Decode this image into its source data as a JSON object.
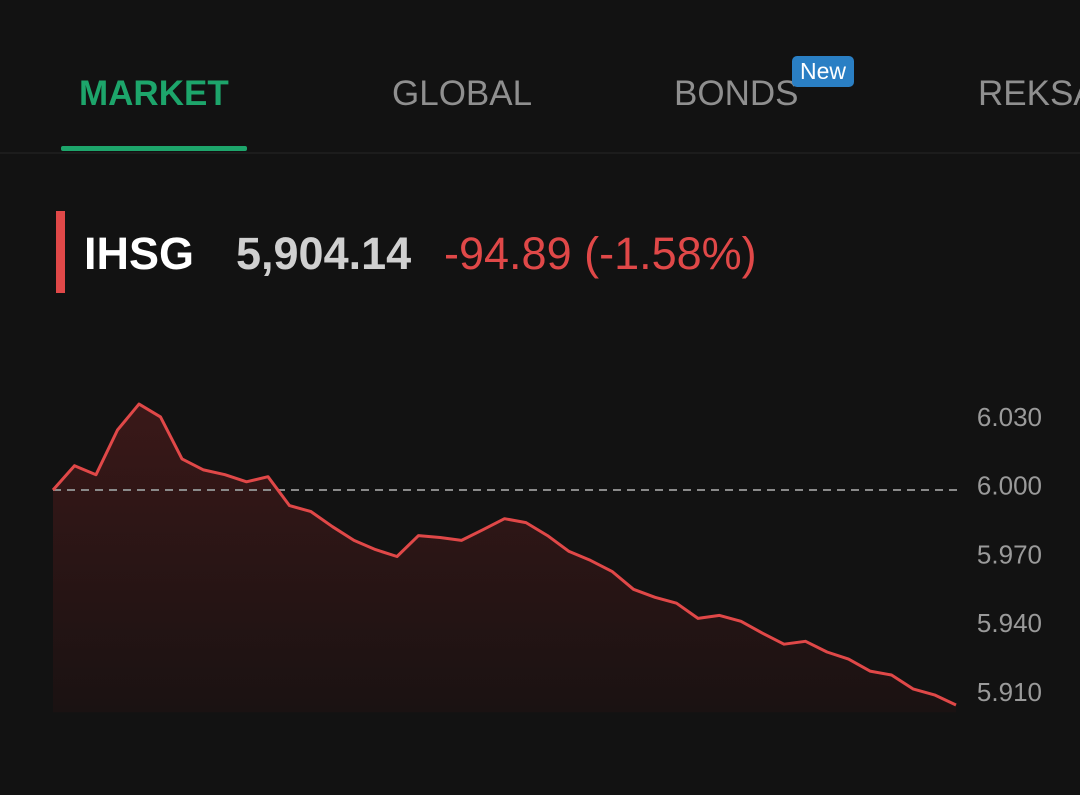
{
  "tabs": [
    {
      "label": "MARKET",
      "active": true
    },
    {
      "label": "GLOBAL"
    },
    {
      "label": "BONDS",
      "badge": "New"
    },
    {
      "label": "REKSA"
    }
  ],
  "header": {
    "symbol": "IHSG",
    "price": "5,904.14",
    "change": "-94.89 (-1.58%)"
  },
  "chart_data": {
    "type": "line",
    "color": "#e04848",
    "values": [
      5999,
      6009.6,
      6005.7,
      6025.2,
      6036.5,
      6030.9,
      6012.6,
      6007.8,
      6005.7,
      6002.6,
      6004.8,
      5992.2,
      5989.6,
      5983.0,
      5977.0,
      5973.0,
      5970.0,
      5979.1,
      5978.3,
      5977.0,
      5981.7,
      5986.5,
      5984.8,
      5979.1,
      5972.2,
      5968.3,
      5963.5,
      5955.7,
      5952.2,
      5949.6,
      5943.0,
      5944.3,
      5941.7,
      5936.5,
      5931.7,
      5933.0,
      5928.3,
      5925.2,
      5920.0,
      5918.3,
      5912.2,
      5909.6,
      5905.2
    ],
    "ylim": [
      5902,
      6041
    ],
    "yticks": [
      {
        "value": 6030,
        "label": "6.030"
      },
      {
        "value": 6000,
        "label": "6.000"
      },
      {
        "value": 5970,
        "label": "5.970"
      },
      {
        "value": 5940,
        "label": "5.940"
      },
      {
        "value": 5910,
        "label": "5.910"
      }
    ],
    "reference_line": 5999.03
  }
}
